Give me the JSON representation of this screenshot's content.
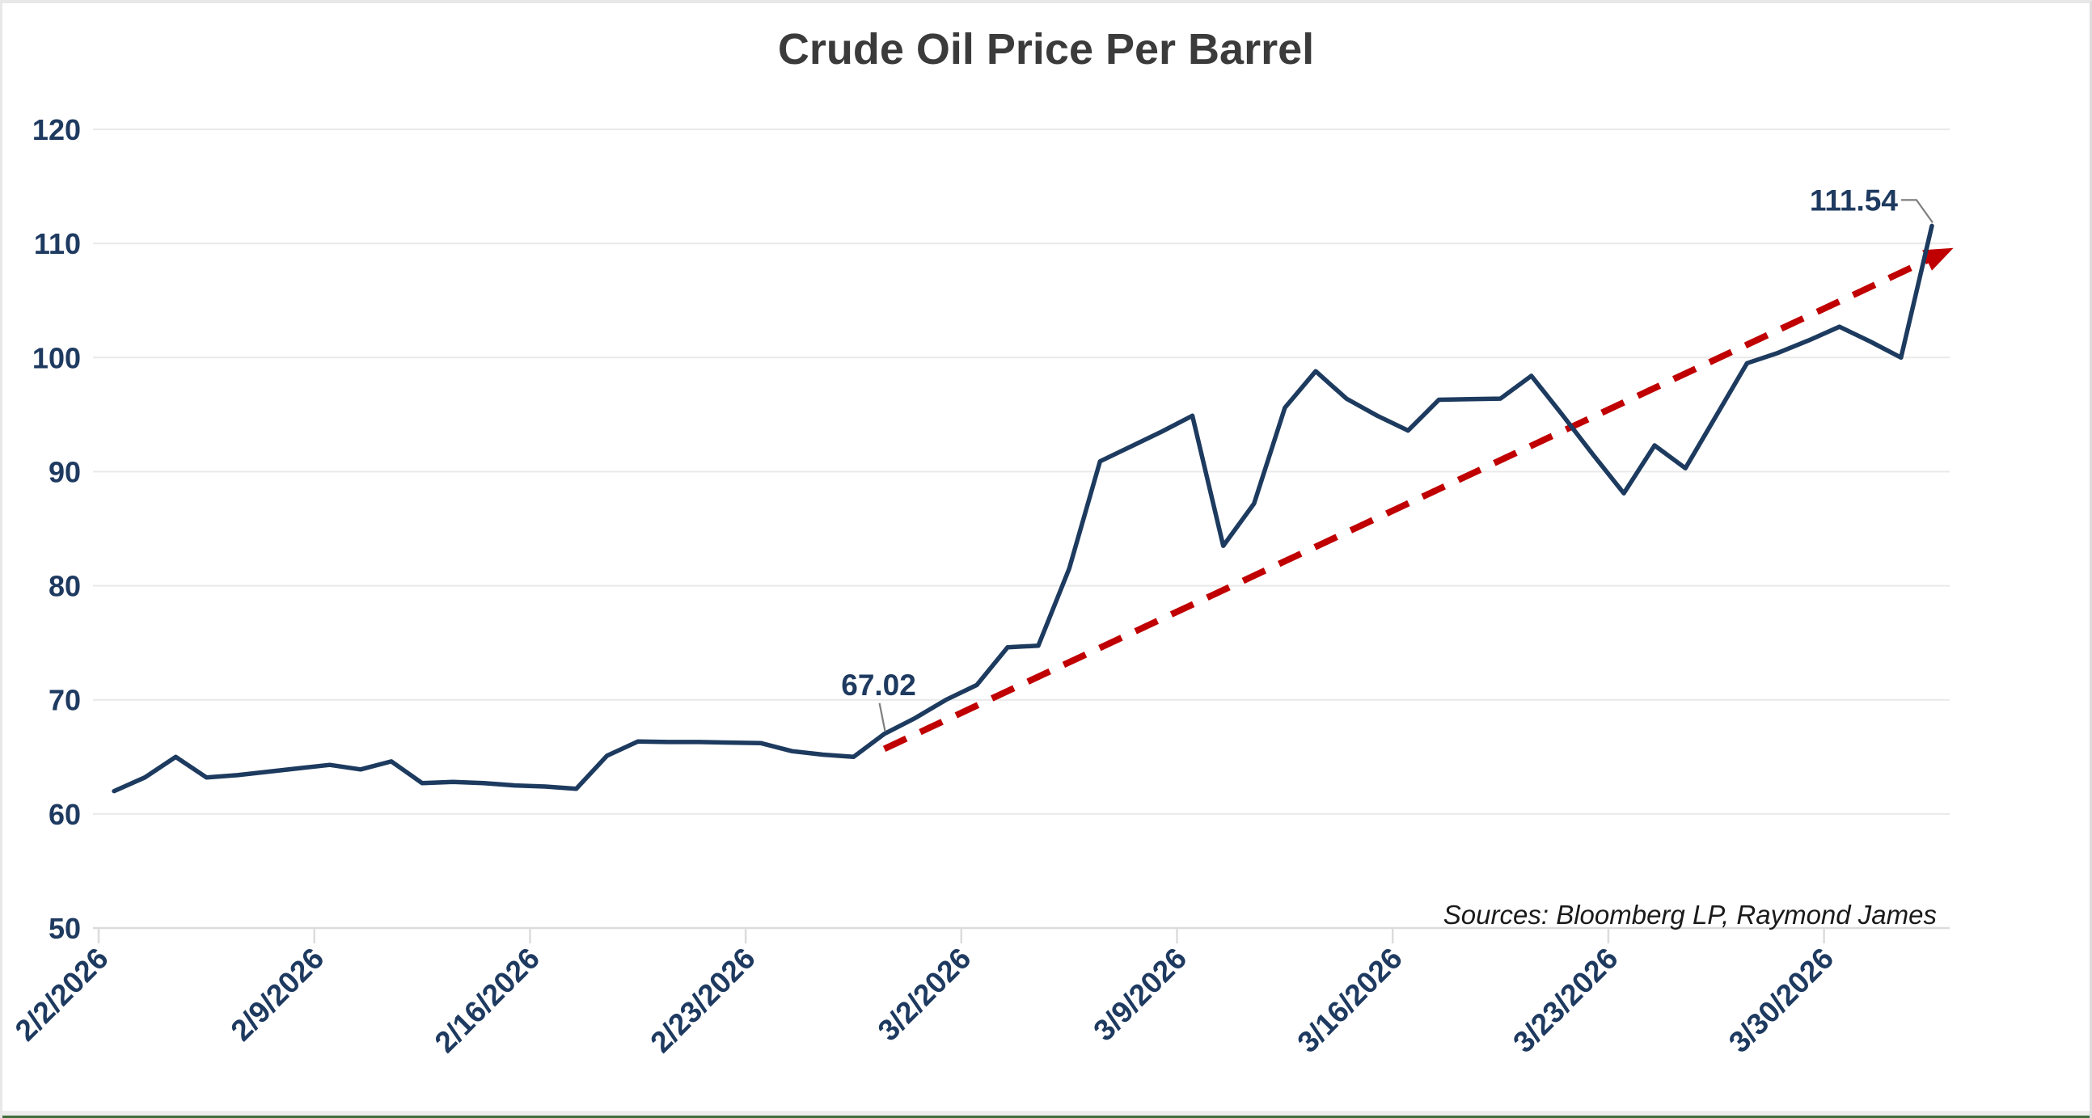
{
  "chart_data": {
    "type": "line",
    "title": "Crude Oil Price Per Barrel",
    "source_note": "Sources: Bloomberg LP, Raymond James",
    "xlabel": "",
    "ylabel": "",
    "ylim": [
      50,
      120
    ],
    "y_ticks": [
      50,
      60,
      70,
      80,
      90,
      100,
      110,
      120
    ],
    "x_tick_labels": [
      "2/2/2026",
      "2/9/2026",
      "2/16/2026",
      "2/23/2026",
      "3/2/2026",
      "3/9/2026",
      "3/16/2026",
      "3/23/2026",
      "3/30/2026"
    ],
    "grid": "horizontal",
    "legend": "none",
    "series": [
      {
        "name": "Crude Oil Price Per Barrel",
        "start_date": "2/2/2026",
        "end_date": "4/2/2026",
        "frequency": "daily",
        "values": [
          62.0,
          63.2,
          65.0,
          63.2,
          63.4,
          63.7,
          64.0,
          64.3,
          63.9,
          64.6,
          62.7,
          62.8,
          62.7,
          62.5,
          62.4,
          62.2,
          65.1,
          66.35,
          66.3,
          66.3,
          66.25,
          66.2,
          65.5,
          65.2,
          65.0,
          67.02,
          68.4,
          70.0,
          71.3,
          74.6,
          74.75,
          81.5,
          90.9,
          92.2,
          93.5,
          94.9,
          83.5,
          87.2,
          95.6,
          98.8,
          96.4,
          94.9,
          93.6,
          96.3,
          96.35,
          96.4,
          98.4,
          95.0,
          91.5,
          88.1,
          92.3,
          90.3,
          94.9,
          99.5,
          100.4,
          101.5,
          102.7,
          101.4,
          100.0,
          111.54
        ]
      }
    ],
    "annotations": [
      {
        "label": "67.02",
        "point_index": 25,
        "value": 67.02,
        "placement": "above"
      },
      {
        "label": "111.54",
        "point_index": 59,
        "value": 111.54,
        "placement": "left"
      }
    ],
    "trendline": {
      "style": "dashed",
      "arrow": true,
      "start_index": 25,
      "start_value": 65.7,
      "end_index": 59.7,
      "end_value": 109.6
    }
  },
  "colors": {
    "line_navy": "#1d3a5f",
    "label_navy": "#1e3a60",
    "trend_red": "#c00000",
    "gridline_gray": "#e9e9e9",
    "leader_gray": "#7f7f7f",
    "title_gray": "#3b3b3b",
    "border_green": "#3f6e3a",
    "background": "#ffffff"
  }
}
